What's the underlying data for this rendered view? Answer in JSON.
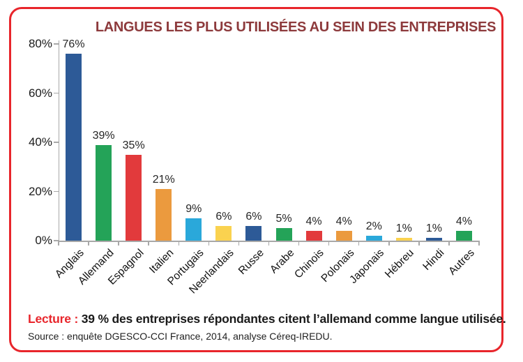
{
  "frame": {
    "border_color": "#e8252b"
  },
  "title": {
    "text": "LANGUES LES PLUS UTILISÉES AU SEIN DES ENTREPRISES",
    "color": "#8d3a3c"
  },
  "chart_data": {
    "type": "bar",
    "title": "LANGUES LES PLUS UTILISÉES AU SEIN DES ENTREPRISES",
    "categories": [
      "Anglais",
      "Allemand",
      "Espagnol",
      "Italien",
      "Portugais",
      "Neerlandais",
      "Russe",
      "Arabe",
      "Chinois",
      "Polonais",
      "Japonais",
      "Hébreu",
      "Hindi",
      "Autres"
    ],
    "values": [
      76,
      39,
      35,
      21,
      9,
      6,
      6,
      5,
      4,
      4,
      2,
      1,
      1,
      4
    ],
    "value_labels": [
      "76%",
      "39%",
      "35%",
      "21%",
      "9%",
      "6%",
      "6%",
      "5%",
      "4%",
      "4%",
      "2%",
      "1%",
      "1%",
      "4%"
    ],
    "bar_colors": [
      "#2d5a97",
      "#24a358",
      "#e23a3c",
      "#eb9a3e",
      "#2aa8da",
      "#fad24f",
      "#2d5a97",
      "#24a358",
      "#e23a3c",
      "#eb9a3e",
      "#2aa8da",
      "#fad24f",
      "#2d5a97",
      "#24a358"
    ],
    "xlabel": "",
    "ylabel": "",
    "ylim": [
      0,
      80
    ],
    "yticks": [
      "0%",
      "20%",
      "40%",
      "60%",
      "80%"
    ],
    "ytick_values": [
      0,
      20,
      40,
      60,
      80
    ],
    "grid": false,
    "legend": false,
    "axis_color": "#a8a8a8"
  },
  "footer": {
    "lecture_label": "Lecture :",
    "lecture_text": " 39 % des entreprises répondantes citent l’allemand comme langue utilisée.",
    "source_text": "Source : enquête DGESCO-CCI France, 2014, analyse Céreq-IREDU."
  }
}
